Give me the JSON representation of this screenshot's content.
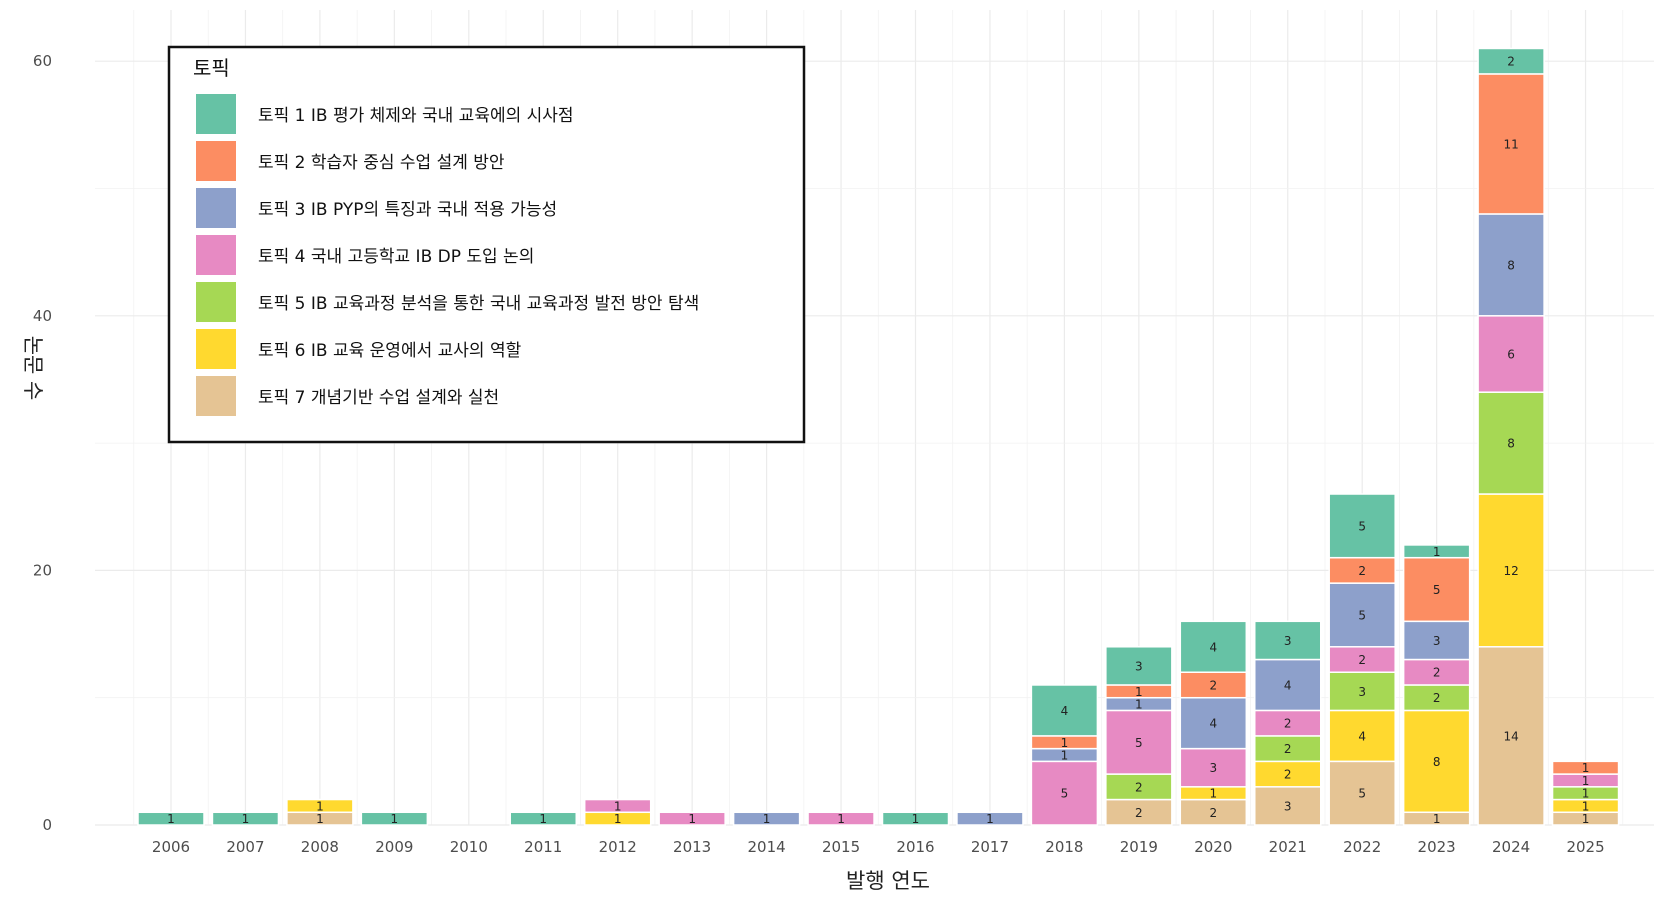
{
  "chart_data": {
    "type": "bar",
    "stacked": true,
    "xlabel": "발행 연도",
    "ylabel": "논문 수",
    "ylim": [
      0,
      63
    ],
    "yticks": [
      0,
      20,
      40,
      60
    ],
    "grid": true,
    "legend": {
      "title": "토픽",
      "position": "top-left"
    },
    "categories": [
      "2006",
      "2007",
      "2008",
      "2009",
      "2010",
      "2011",
      "2012",
      "2013",
      "2014",
      "2015",
      "2016",
      "2017",
      "2018",
      "2019",
      "2020",
      "2021",
      "2022",
      "2023",
      "2024",
      "2025"
    ],
    "series": [
      {
        "name": "토픽 7 개념기반 수업 설계와 실천",
        "color": "#e5c494",
        "values": [
          0,
          0,
          1,
          0,
          0,
          0,
          0,
          0,
          0,
          0,
          0,
          0,
          0,
          2,
          2,
          3,
          5,
          1,
          14,
          1
        ]
      },
      {
        "name": "토픽 6 IB 교육 운영에서 교사의 역할",
        "color": "#ffd92f",
        "values": [
          0,
          0,
          1,
          0,
          0,
          0,
          1,
          0,
          0,
          0,
          0,
          0,
          0,
          0,
          1,
          2,
          4,
          8,
          12,
          1
        ]
      },
      {
        "name": "토픽 5 IB 교육과정 분석을 통한 국내 교육과정 발전 방안 탐색",
        "color": "#a6d854",
        "values": [
          0,
          0,
          0,
          0,
          0,
          0,
          0,
          0,
          0,
          0,
          0,
          0,
          0,
          2,
          0,
          2,
          3,
          2,
          8,
          1
        ]
      },
      {
        "name": "토픽 4 국내 고등학교 IB DP 도입 논의",
        "color": "#e78ac3",
        "values": [
          0,
          0,
          0,
          0,
          0,
          0,
          1,
          1,
          0,
          1,
          0,
          0,
          5,
          5,
          3,
          2,
          2,
          2,
          6,
          1
        ]
      },
      {
        "name": "토픽 3 IB PYP의 특징과 국내 적용 가능성",
        "color": "#8da0cb",
        "values": [
          0,
          0,
          0,
          0,
          0,
          0,
          0,
          0,
          1,
          0,
          0,
          1,
          1,
          1,
          4,
          4,
          5,
          3,
          8,
          0
        ]
      },
      {
        "name": "토픽 2 학습자 중심 수업 설계 방안",
        "color": "#fc8d62",
        "values": [
          0,
          0,
          0,
          0,
          0,
          0,
          0,
          0,
          0,
          0,
          0,
          0,
          1,
          1,
          2,
          0,
          2,
          5,
          11,
          1
        ]
      },
      {
        "name": "토픽 1 IB 평가 체제와 국내 교육에의 시사점",
        "color": "#66c2a5",
        "values": [
          1,
          1,
          0,
          1,
          0,
          1,
          0,
          0,
          0,
          0,
          1,
          0,
          4,
          3,
          4,
          3,
          5,
          1,
          2,
          0
        ]
      }
    ],
    "legend_order": [
      6,
      5,
      4,
      3,
      2,
      1,
      0
    ]
  }
}
